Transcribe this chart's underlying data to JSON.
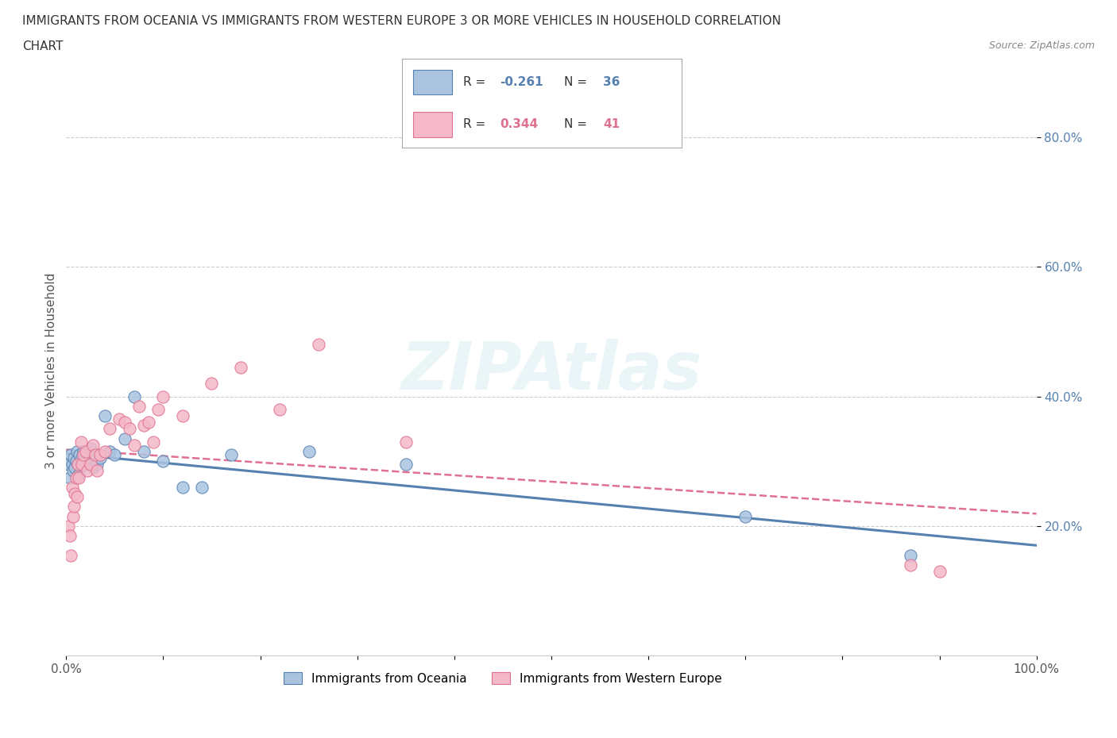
{
  "title_line1": "IMMIGRANTS FROM OCEANIA VS IMMIGRANTS FROM WESTERN EUROPE 3 OR MORE VEHICLES IN HOUSEHOLD CORRELATION",
  "title_line2": "CHART",
  "source_text": "Source: ZipAtlas.com",
  "ylabel": "3 or more Vehicles in Household",
  "xlim": [
    0.0,
    1.0
  ],
  "ylim": [
    0.0,
    0.88
  ],
  "xtick_labels": [
    "0.0%",
    "",
    "",
    "",
    "",
    "",
    "",
    "",
    "",
    "",
    "100.0%"
  ],
  "xtick_vals": [
    0.0,
    0.1,
    0.2,
    0.3,
    0.4,
    0.5,
    0.6,
    0.7,
    0.8,
    0.9,
    1.0
  ],
  "ytick_labels": [
    "20.0%",
    "40.0%",
    "60.0%",
    "80.0%"
  ],
  "ytick_vals": [
    0.2,
    0.4,
    0.6,
    0.8
  ],
  "grid_color": "#cccccc",
  "background_color": "#ffffff",
  "oceania_color": "#aac4e0",
  "oceania_color_line": "#5580b0",
  "western_europe_color": "#f4b8c8",
  "western_europe_color_line": "#e07090",
  "oceania_R": -0.261,
  "oceania_N": 36,
  "western_europe_R": 0.344,
  "western_europe_N": 41,
  "oceania_x": [
    0.002,
    0.004,
    0.005,
    0.006,
    0.007,
    0.008,
    0.009,
    0.01,
    0.011,
    0.012,
    0.013,
    0.014,
    0.015,
    0.016,
    0.018,
    0.02,
    0.022,
    0.025,
    0.028,
    0.03,
    0.032,
    0.035,
    0.04,
    0.045,
    0.05,
    0.06,
    0.07,
    0.08,
    0.1,
    0.12,
    0.14,
    0.17,
    0.25,
    0.35,
    0.7,
    0.87
  ],
  "oceania_y": [
    0.295,
    0.275,
    0.31,
    0.295,
    0.285,
    0.305,
    0.29,
    0.3,
    0.315,
    0.295,
    0.28,
    0.31,
    0.295,
    0.305,
    0.315,
    0.295,
    0.3,
    0.32,
    0.29,
    0.31,
    0.295,
    0.305,
    0.37,
    0.315,
    0.31,
    0.335,
    0.4,
    0.315,
    0.3,
    0.26,
    0.26,
    0.31,
    0.315,
    0.295,
    0.215,
    0.155
  ],
  "western_europe_x": [
    0.002,
    0.004,
    0.005,
    0.006,
    0.007,
    0.008,
    0.009,
    0.01,
    0.011,
    0.012,
    0.013,
    0.015,
    0.016,
    0.018,
    0.02,
    0.022,
    0.025,
    0.028,
    0.03,
    0.032,
    0.035,
    0.04,
    0.045,
    0.055,
    0.06,
    0.065,
    0.07,
    0.075,
    0.08,
    0.085,
    0.09,
    0.095,
    0.1,
    0.12,
    0.15,
    0.18,
    0.22,
    0.26,
    0.35,
    0.87,
    0.9
  ],
  "western_europe_y": [
    0.2,
    0.185,
    0.155,
    0.26,
    0.215,
    0.23,
    0.25,
    0.275,
    0.245,
    0.295,
    0.275,
    0.33,
    0.295,
    0.31,
    0.315,
    0.285,
    0.295,
    0.325,
    0.31,
    0.285,
    0.31,
    0.315,
    0.35,
    0.365,
    0.36,
    0.35,
    0.325,
    0.385,
    0.355,
    0.36,
    0.33,
    0.38,
    0.4,
    0.37,
    0.42,
    0.445,
    0.38,
    0.48,
    0.33,
    0.14,
    0.13
  ],
  "legend_label_oceania": "Immigrants from Oceania",
  "legend_label_western": "Immigrants from Western Europe"
}
